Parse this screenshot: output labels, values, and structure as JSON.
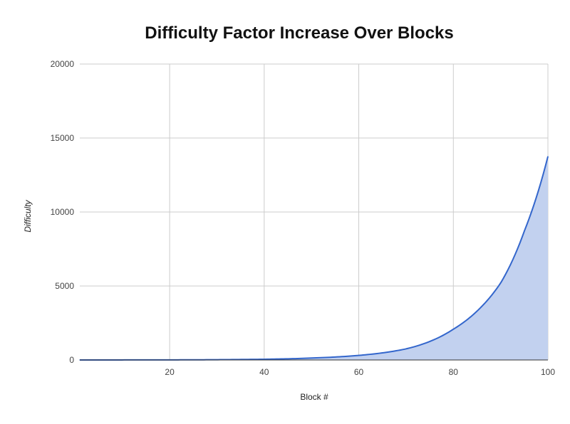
{
  "chart_data": {
    "type": "area",
    "title": "Difficulty Factor Increase Over Blocks",
    "xlabel": "Block #",
    "ylabel": "Difficulty",
    "xlim": [
      1,
      100
    ],
    "ylim": [
      0,
      20000
    ],
    "x_ticks": [
      20,
      40,
      60,
      80,
      100
    ],
    "y_ticks": [
      0,
      5000,
      10000,
      15000,
      20000
    ],
    "grid": true,
    "legend": "none",
    "colors": {
      "line": "#3366cc",
      "fill": "#c2d1ef",
      "grid": "#cccccc",
      "baseline": "#333333"
    },
    "series": [
      {
        "x": [
          1,
          5,
          10,
          15,
          20,
          25,
          30,
          35,
          40,
          45,
          50,
          55,
          60,
          65,
          70,
          75,
          80,
          85,
          90,
          95,
          100
        ],
        "values": [
          1,
          1.5,
          3,
          5,
          7,
          12,
          20,
          33,
          50,
          80,
          130,
          200,
          310,
          480,
          750,
          1250,
          2080,
          3300,
          5200,
          8700,
          13750
        ]
      }
    ]
  }
}
